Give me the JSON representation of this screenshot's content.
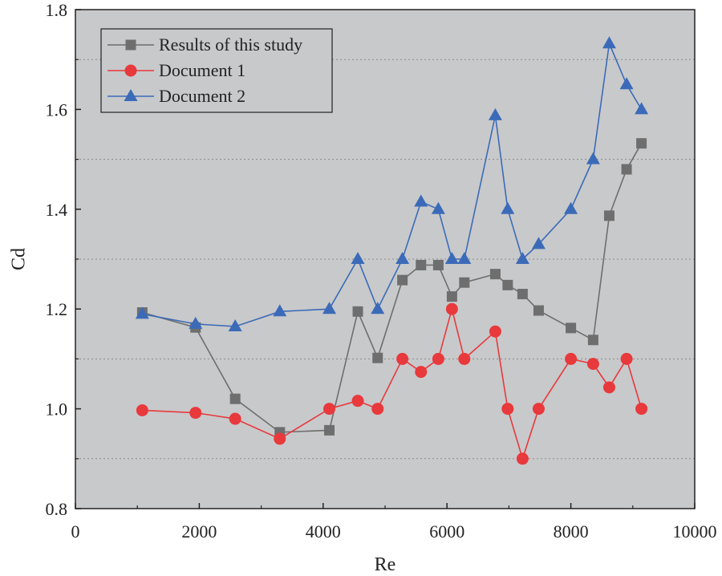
{
  "chart_data": {
    "type": "line",
    "xlabel": "Re",
    "ylabel": "Cd",
    "xlim": [
      0,
      10000
    ],
    "ylim": [
      0.8,
      1.8
    ],
    "x_ticks": [
      "0",
      "2000",
      "4000",
      "6000",
      "8000",
      "10000"
    ],
    "y_ticks": [
      "0.8",
      "1.0",
      "1.2",
      "1.4",
      "1.6",
      "1.8"
    ],
    "grid": "dotted horizontal",
    "background_color": "#c8c9cb",
    "legend_position": "top-left",
    "series": [
      {
        "name": "Results of this study",
        "marker": "square",
        "color": "#6e6e6e",
        "x": [
          1080,
          1940,
          2580,
          3300,
          4100,
          4560,
          4880,
          5280,
          5580,
          5860,
          6080,
          6280,
          6780,
          6980,
          7220,
          7480,
          8000,
          8360,
          8620,
          8900,
          9140
        ],
        "y": [
          1.193,
          1.163,
          1.02,
          0.953,
          0.957,
          1.195,
          1.102,
          1.258,
          1.288,
          1.288,
          1.225,
          1.253,
          1.27,
          1.248,
          1.23,
          1.197,
          1.162,
          1.138,
          1.387,
          1.48,
          1.532
        ]
      },
      {
        "name": "Document 1",
        "marker": "circle",
        "color": "#e8393c",
        "x": [
          1080,
          1940,
          2580,
          3300,
          4100,
          4560,
          4880,
          5280,
          5580,
          5860,
          6080,
          6280,
          6780,
          6980,
          7220,
          7480,
          8000,
          8360,
          8620,
          8900,
          9140
        ],
        "y": [
          0.997,
          0.992,
          0.98,
          0.94,
          1.0,
          1.016,
          1.0,
          1.1,
          1.074,
          1.1,
          1.2,
          1.1,
          1.155,
          1.0,
          0.9,
          1.0,
          1.1,
          1.09,
          1.043,
          1.1,
          1.0
        ]
      },
      {
        "name": "Document 2",
        "marker": "triangle",
        "color": "#3b6bb8",
        "x": [
          1080,
          1940,
          2580,
          3300,
          4100,
          4560,
          4880,
          5280,
          5580,
          5860,
          6080,
          6280,
          6780,
          6980,
          7220,
          7480,
          8000,
          8360,
          8620,
          8900,
          9140
        ],
        "y": [
          1.19,
          1.17,
          1.165,
          1.195,
          1.2,
          1.3,
          1.2,
          1.3,
          1.415,
          1.4,
          1.3,
          1.3,
          1.588,
          1.4,
          1.3,
          1.33,
          1.4,
          1.5,
          1.732,
          1.65,
          1.6
        ]
      }
    ]
  }
}
